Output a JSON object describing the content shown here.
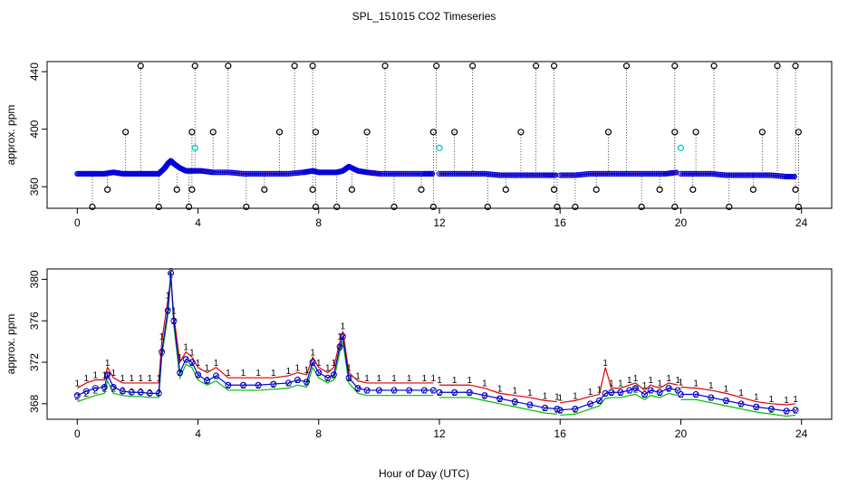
{
  "chart_data": [
    {
      "type": "scatter",
      "title": "SPL_151015  CO2 Timeseries",
      "xlabel": "",
      "ylabel": "approx. ppm",
      "xlim": [
        -1,
        25
      ],
      "ylim": [
        345,
        447
      ],
      "xticks": [
        0,
        4,
        8,
        12,
        16,
        20,
        24
      ],
      "yticks": [
        360,
        400,
        440
      ],
      "baseline_segments": [
        {
          "x": [
            0.0,
            0.3,
            0.6,
            0.9,
            1.2,
            1.5,
            1.8,
            2.1,
            2.4,
            2.7,
            2.9,
            3.0,
            3.1,
            3.2,
            3.4,
            3.6,
            3.8,
            4.1,
            4.5,
            5.0,
            5.5,
            6.0,
            6.5,
            7.0,
            7.5,
            7.8,
            8.0,
            8.3,
            8.6,
            8.8,
            9.0,
            9.3,
            9.6,
            10.0,
            10.5,
            11.0,
            11.5,
            11.8
          ],
          "y": [
            369,
            369,
            369,
            369,
            370,
            369,
            369,
            369,
            369,
            369,
            373,
            376,
            378,
            376,
            373,
            371,
            371,
            371,
            370,
            370,
            369,
            369,
            369,
            369,
            370,
            371,
            370,
            370,
            370,
            371,
            374,
            371,
            370,
            369,
            369,
            369,
            369,
            369
          ]
        },
        {
          "x": [
            12.0,
            12.5,
            13.0,
            13.5,
            14.0,
            14.5,
            15.0,
            15.5,
            15.9
          ],
          "y": [
            369,
            369,
            369,
            369,
            368,
            368,
            368,
            368,
            368
          ]
        },
        {
          "x": [
            16.0,
            16.5,
            17.0,
            17.5,
            18.0,
            18.5,
            19.0,
            19.5,
            19.9
          ],
          "y": [
            368,
            368,
            369,
            369,
            369,
            369,
            369,
            369,
            370
          ]
        },
        {
          "x": [
            20.0,
            20.5,
            21.0,
            21.5,
            22.0,
            22.5,
            23.0,
            23.5,
            23.8
          ],
          "y": [
            369,
            369,
            369,
            368,
            368,
            368,
            368,
            367,
            367
          ]
        }
      ],
      "outliers_high": [
        2.1,
        3.9,
        5.0,
        7.2,
        7.8,
        10.2,
        11.9,
        13.1,
        15.2,
        15.8,
        18.2,
        19.8,
        21.1,
        23.2,
        23.8
      ],
      "outliers_mid": [
        1.6,
        3.8,
        4.5,
        6.7,
        7.9,
        9.6,
        11.8,
        12.5,
        14.7,
        17.6,
        19.8,
        20.5,
        22.7,
        23.9
      ],
      "outliers_low": [
        0.5,
        2.7,
        3.7,
        5.6,
        7.9,
        8.6,
        10.5,
        11.8,
        13.6,
        15.9,
        16.5,
        18.7,
        19.8,
        21.6,
        23.9
      ],
      "outliers_lowmid": [
        1.0,
        3.3,
        3.8,
        6.2,
        7.8,
        9.1,
        11.4,
        14.2,
        15.8,
        17.2,
        19.3,
        20.4,
        22.4,
        23.8
      ],
      "cyan_points": [
        {
          "x": 3.9,
          "y": 387
        },
        {
          "x": 12.0,
          "y": 387
        },
        {
          "x": 20.0,
          "y": 387
        }
      ]
    },
    {
      "type": "line",
      "title": "",
      "xlabel": "Hour of Day (UTC)",
      "ylabel": "approx. ppm",
      "xlim": [
        -1,
        25
      ],
      "ylim": [
        366.5,
        381
      ],
      "xticks": [
        0,
        4,
        8,
        12,
        16,
        20,
        24
      ],
      "yticks": [
        368,
        372,
        376,
        380
      ],
      "series": [
        {
          "name": "1",
          "color": "#dd0000",
          "x": [
            0.0,
            0.3,
            0.6,
            0.9,
            1.0,
            1.2,
            1.5,
            1.8,
            2.1,
            2.4,
            2.7,
            2.8,
            3.0,
            3.1,
            3.2,
            3.4,
            3.6,
            3.8,
            4.0,
            4.3,
            4.6,
            5.0,
            5.5,
            6.0,
            6.5,
            7.0,
            7.3,
            7.6,
            7.8,
            8.0,
            8.3,
            8.5,
            8.7,
            8.8,
            9.0,
            9.3,
            9.6,
            10.0,
            10.5,
            11.0,
            11.5,
            11.8,
            12.0,
            12.5,
            13.0,
            13.5,
            14.0,
            14.5,
            15.0,
            15.5,
            15.9,
            16.0,
            16.5,
            17.0,
            17.3,
            17.5,
            17.7,
            18.0,
            18.3,
            18.5,
            18.8,
            19.0,
            19.3,
            19.6,
            19.9,
            20.0,
            20.5,
            21.0,
            21.5,
            22.0,
            22.5,
            23.0,
            23.5,
            23.8
          ],
          "y": [
            369.5,
            370.0,
            370.3,
            370.3,
            371.5,
            370.5,
            370.0,
            370.0,
            370.0,
            370.0,
            370.0,
            374.0,
            378.0,
            380.0,
            376.5,
            372.0,
            373.0,
            372.5,
            371.5,
            371.0,
            371.5,
            370.5,
            370.5,
            370.5,
            370.5,
            370.7,
            371.0,
            370.8,
            372.5,
            371.5,
            371.0,
            371.5,
            374.0,
            375.0,
            371.0,
            370.2,
            370.0,
            370.0,
            370.0,
            370.0,
            370.0,
            370.0,
            369.8,
            369.8,
            369.8,
            369.5,
            369.0,
            368.8,
            368.6,
            368.3,
            368.2,
            368.1,
            368.3,
            368.7,
            368.9,
            371.5,
            369.5,
            369.5,
            369.8,
            370.0,
            369.3,
            369.8,
            369.5,
            370.0,
            369.8,
            369.6,
            369.5,
            369.3,
            369.0,
            368.6,
            368.2,
            368.0,
            367.9,
            368.0
          ]
        },
        {
          "name": "2",
          "color": "#00bb00",
          "x": [
            0.0,
            0.3,
            0.6,
            0.9,
            1.0,
            1.2,
            1.5,
            1.8,
            2.1,
            2.4,
            2.7,
            2.8,
            3.0,
            3.1,
            3.2,
            3.4,
            3.6,
            3.8,
            4.0,
            4.3,
            4.6,
            5.0,
            5.5,
            6.0,
            6.5,
            7.0,
            7.3,
            7.6,
            7.8,
            8.0,
            8.3,
            8.5,
            8.7,
            8.8,
            9.0,
            9.3,
            9.6,
            10.0,
            10.5,
            11.0,
            11.5,
            11.8,
            12.0,
            12.5,
            13.0,
            13.5,
            14.0,
            14.5,
            15.0,
            15.5,
            15.9,
            16.0,
            16.5,
            17.0,
            17.3,
            17.5,
            17.7,
            18.0,
            18.3,
            18.5,
            18.8,
            19.0,
            19.3,
            19.6,
            19.9,
            20.0,
            20.5,
            21.0,
            21.5,
            22.0,
            22.5,
            23.0,
            23.5,
            23.8
          ],
          "y": [
            368.2,
            368.5,
            368.8,
            369.0,
            370.2,
            369.0,
            368.8,
            368.7,
            368.7,
            368.6,
            368.6,
            372.5,
            376.5,
            380.3,
            375.5,
            370.5,
            371.8,
            371.5,
            370.3,
            369.8,
            370.2,
            369.3,
            369.3,
            369.3,
            369.4,
            369.5,
            369.8,
            369.6,
            371.5,
            370.5,
            370.0,
            370.3,
            373.0,
            374.0,
            370.0,
            369.0,
            368.8,
            368.8,
            368.8,
            368.8,
            368.8,
            368.8,
            368.6,
            368.6,
            368.6,
            368.3,
            368.0,
            367.7,
            367.4,
            367.1,
            367.0,
            366.9,
            367.0,
            367.5,
            367.8,
            368.5,
            368.6,
            368.6,
            368.8,
            368.9,
            368.4,
            368.8,
            368.6,
            369.0,
            368.8,
            368.4,
            368.4,
            368.1,
            367.8,
            367.5,
            367.2,
            367.0,
            366.8,
            366.9
          ]
        },
        {
          "name": "3",
          "color": "#0000dd",
          "x": [
            0.0,
            0.3,
            0.6,
            0.9,
            1.0,
            1.2,
            1.5,
            1.8,
            2.1,
            2.4,
            2.7,
            2.8,
            3.0,
            3.1,
            3.2,
            3.4,
            3.6,
            3.8,
            4.0,
            4.3,
            4.6,
            5.0,
            5.5,
            6.0,
            6.5,
            7.0,
            7.3,
            7.6,
            7.8,
            8.0,
            8.3,
            8.5,
            8.7,
            8.8,
            9.0,
            9.3,
            9.6,
            10.0,
            10.5,
            11.0,
            11.5,
            11.8,
            12.0,
            12.5,
            13.0,
            13.5,
            14.0,
            14.5,
            15.0,
            15.5,
            15.9,
            16.0,
            16.5,
            17.0,
            17.3,
            17.5,
            17.7,
            18.0,
            18.3,
            18.5,
            18.8,
            19.0,
            19.3,
            19.6,
            19.9,
            20.0,
            20.5,
            21.0,
            21.5,
            22.0,
            22.5,
            23.0,
            23.5,
            23.8
          ],
          "y": [
            368.8,
            369.2,
            369.5,
            369.6,
            370.8,
            369.6,
            369.2,
            369.1,
            369.1,
            369.0,
            369.0,
            373.0,
            377.0,
            380.6,
            376.0,
            371.0,
            372.3,
            372.0,
            370.8,
            370.2,
            370.7,
            369.8,
            369.8,
            369.8,
            369.9,
            370.0,
            370.3,
            370.1,
            372.0,
            371.0,
            370.5,
            370.8,
            373.5,
            374.5,
            370.5,
            369.5,
            369.3,
            369.3,
            369.3,
            369.3,
            369.3,
            369.3,
            369.1,
            369.1,
            369.1,
            368.8,
            368.5,
            368.2,
            367.9,
            367.6,
            367.5,
            367.4,
            367.5,
            368.0,
            368.3,
            369.0,
            369.1,
            369.1,
            369.3,
            369.5,
            368.9,
            369.3,
            369.1,
            369.5,
            369.3,
            368.9,
            368.9,
            368.6,
            368.3,
            368.0,
            367.7,
            367.5,
            367.3,
            367.4
          ]
        }
      ]
    }
  ]
}
